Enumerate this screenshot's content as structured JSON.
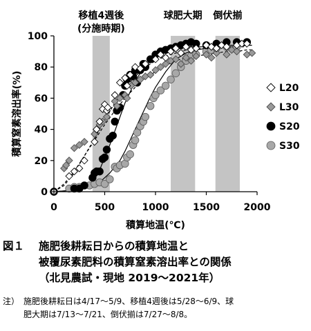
{
  "chart_data": {
    "type": "scatter",
    "xlabel": "積算地温(℃)",
    "ylabel": "積算窒素溶出率(%)",
    "xlim": [
      0,
      2000
    ],
    "ylim": [
      0,
      100
    ],
    "xticks": [
      "0",
      "500",
      "1000",
      "1500",
      "2000"
    ],
    "yticks": [
      "0",
      "20",
      "40",
      "60",
      "80",
      "100"
    ],
    "periods": [
      {
        "label_lines": [
          "移植4週後",
          "(分施時期)"
        ],
        "x_start": 380,
        "x_end": 550
      },
      {
        "label_lines": [
          "球肥大期"
        ],
        "x_start": 1150,
        "x_end": 1390
      },
      {
        "label_lines": [
          "倒伏揃"
        ],
        "x_start": 1590,
        "x_end": 1830
      }
    ],
    "legend_position": "right",
    "series": [
      {
        "name": "L20",
        "marker": "diamond-open",
        "fill": "#ffffff",
        "stroke": "#000000",
        "curve_style": "dashed",
        "curve": [
          [
            0,
            0
          ],
          [
            100,
            4
          ],
          [
            200,
            12
          ],
          [
            300,
            23
          ],
          [
            400,
            34
          ],
          [
            500,
            46
          ],
          [
            600,
            57
          ],
          [
            700,
            66
          ],
          [
            800,
            74
          ],
          [
            900,
            80
          ],
          [
            1000,
            84
          ],
          [
            1100,
            87
          ],
          [
            1200,
            89
          ],
          [
            1300,
            91
          ],
          [
            1400,
            92
          ],
          [
            1500,
            92
          ],
          [
            1600,
            92
          ],
          [
            1700,
            93
          ],
          [
            1800,
            93
          ],
          [
            1900,
            93
          ]
        ],
        "points": [
          [
            0,
            0
          ],
          [
            150,
            10
          ],
          [
            200,
            13
          ],
          [
            250,
            15
          ],
          [
            300,
            20
          ],
          [
            400,
            32
          ],
          [
            420,
            40
          ],
          [
            450,
            45
          ],
          [
            480,
            53
          ],
          [
            500,
            56
          ],
          [
            520,
            52
          ],
          [
            530,
            54
          ],
          [
            600,
            62
          ],
          [
            650,
            70
          ],
          [
            700,
            73
          ],
          [
            720,
            68
          ],
          [
            750,
            75
          ],
          [
            800,
            80
          ],
          [
            850,
            79
          ],
          [
            900,
            82
          ],
          [
            1000,
            85
          ],
          [
            1050,
            88
          ],
          [
            1100,
            86
          ],
          [
            1150,
            90
          ],
          [
            1200,
            92
          ],
          [
            1250,
            89
          ],
          [
            1300,
            93
          ],
          [
            1350,
            91
          ],
          [
            1400,
            92
          ],
          [
            1500,
            94
          ],
          [
            1550,
            93
          ],
          [
            1600,
            92
          ],
          [
            1650,
            94
          ],
          [
            1700,
            93
          ],
          [
            1800,
            94
          ],
          [
            1850,
            95
          ],
          [
            1900,
            95
          ]
        ]
      },
      {
        "name": "L30",
        "marker": "diamond-filled",
        "fill": "#9a9a9a",
        "stroke": "#4a4a4a",
        "curve_style": "dashed",
        "curve": [
          [
            0,
            0
          ],
          [
            100,
            5
          ],
          [
            200,
            13
          ],
          [
            300,
            23
          ],
          [
            400,
            33
          ],
          [
            500,
            43
          ],
          [
            600,
            52
          ],
          [
            700,
            60
          ],
          [
            800,
            67
          ],
          [
            900,
            73
          ],
          [
            1000,
            77
          ],
          [
            1100,
            81
          ],
          [
            1200,
            84
          ],
          [
            1300,
            86
          ],
          [
            1400,
            87
          ],
          [
            1500,
            88
          ],
          [
            1600,
            89
          ],
          [
            1700,
            90
          ],
          [
            1800,
            90
          ],
          [
            1900,
            91
          ],
          [
            1950,
            91
          ]
        ],
        "points": [
          [
            0,
            0
          ],
          [
            100,
            15
          ],
          [
            120,
            17
          ],
          [
            150,
            20
          ],
          [
            200,
            28
          ],
          [
            250,
            30
          ],
          [
            300,
            32
          ],
          [
            400,
            37
          ],
          [
            420,
            40
          ],
          [
            450,
            43
          ],
          [
            480,
            45
          ],
          [
            520,
            48
          ],
          [
            600,
            58
          ],
          [
            620,
            55
          ],
          [
            650,
            60
          ],
          [
            700,
            62
          ],
          [
            720,
            60
          ],
          [
            760,
            68
          ],
          [
            800,
            70
          ],
          [
            850,
            72
          ],
          [
            900,
            74
          ],
          [
            950,
            75
          ],
          [
            1000,
            78
          ],
          [
            1050,
            80
          ],
          [
            1100,
            82
          ],
          [
            1150,
            84
          ],
          [
            1200,
            85
          ],
          [
            1250,
            82
          ],
          [
            1300,
            86
          ],
          [
            1350,
            84
          ],
          [
            1400,
            87
          ],
          [
            1500,
            88
          ],
          [
            1550,
            86
          ],
          [
            1600,
            89
          ],
          [
            1700,
            88
          ],
          [
            1750,
            91
          ],
          [
            1800,
            90
          ],
          [
            1900,
            88
          ],
          [
            1950,
            89
          ]
        ]
      },
      {
        "name": "S20",
        "marker": "circle-filled",
        "fill": "#000000",
        "stroke": "#000000",
        "curve_style": "solid",
        "curve": [
          [
            0,
            0
          ],
          [
            200,
            1
          ],
          [
            300,
            2
          ],
          [
            350,
            4
          ],
          [
            400,
            8
          ],
          [
            450,
            14
          ],
          [
            500,
            22
          ],
          [
            550,
            30
          ],
          [
            600,
            39
          ],
          [
            650,
            48
          ],
          [
            700,
            57
          ],
          [
            750,
            64
          ],
          [
            800,
            71
          ],
          [
            850,
            76
          ],
          [
            900,
            80
          ],
          [
            950,
            84
          ],
          [
            1000,
            87
          ],
          [
            1050,
            89
          ],
          [
            1100,
            90
          ],
          [
            1150,
            91
          ],
          [
            1200,
            92
          ],
          [
            1300,
            93
          ],
          [
            1400,
            93
          ],
          [
            1500,
            93
          ],
          [
            1600,
            94
          ],
          [
            1700,
            94
          ],
          [
            1800,
            94
          ],
          [
            1900,
            94
          ],
          [
            1950,
            94
          ]
        ],
        "points": [
          [
            0,
            0
          ],
          [
            200,
            2
          ],
          [
            250,
            2
          ],
          [
            300,
            4
          ],
          [
            380,
            9
          ],
          [
            400,
            12
          ],
          [
            420,
            13
          ],
          [
            450,
            13
          ],
          [
            480,
            21
          ],
          [
            500,
            22
          ],
          [
            520,
            27
          ],
          [
            550,
            34
          ],
          [
            580,
            36
          ],
          [
            600,
            45
          ],
          [
            620,
            52
          ],
          [
            650,
            54
          ],
          [
            680,
            62
          ],
          [
            700,
            68
          ],
          [
            720,
            72
          ],
          [
            750,
            75
          ],
          [
            780,
            74
          ],
          [
            800,
            78
          ],
          [
            820,
            70
          ],
          [
            850,
            78
          ],
          [
            880,
            82
          ],
          [
            900,
            80
          ],
          [
            950,
            85
          ],
          [
            1000,
            88
          ],
          [
            1050,
            90
          ],
          [
            1100,
            91
          ],
          [
            1150,
            92
          ],
          [
            1200,
            93
          ],
          [
            1250,
            94
          ],
          [
            1300,
            95
          ],
          [
            1350,
            96
          ],
          [
            1400,
            95
          ],
          [
            1500,
            94
          ],
          [
            1600,
            95
          ],
          [
            1700,
            96
          ],
          [
            1800,
            96
          ],
          [
            1900,
            96
          ]
        ]
      },
      {
        "name": "S30",
        "marker": "circle-filled",
        "fill": "#a8a8a8",
        "stroke": "#5a5a5a",
        "curve_style": "solid",
        "curve": [
          [
            0,
            0
          ],
          [
            200,
            1
          ],
          [
            300,
            2
          ],
          [
            400,
            4
          ],
          [
            450,
            6
          ],
          [
            500,
            9
          ],
          [
            550,
            12
          ],
          [
            600,
            16
          ],
          [
            650,
            20
          ],
          [
            700,
            26
          ],
          [
            750,
            33
          ],
          [
            800,
            40
          ],
          [
            850,
            47
          ],
          [
            900,
            54
          ],
          [
            950,
            61
          ],
          [
            1000,
            67
          ],
          [
            1050,
            72
          ],
          [
            1100,
            77
          ],
          [
            1150,
            81
          ],
          [
            1200,
            85
          ],
          [
            1250,
            87
          ],
          [
            1300,
            89
          ],
          [
            1350,
            90
          ],
          [
            1400,
            91
          ],
          [
            1500,
            92
          ],
          [
            1600,
            93
          ],
          [
            1700,
            93
          ],
          [
            1800,
            93
          ],
          [
            1900,
            94
          ]
        ],
        "points": [
          [
            0,
            0
          ],
          [
            150,
            2
          ],
          [
            200,
            3
          ],
          [
            250,
            3
          ],
          [
            350,
            4
          ],
          [
            400,
            5
          ],
          [
            450,
            6
          ],
          [
            500,
            5
          ],
          [
            550,
            8
          ],
          [
            600,
            16
          ],
          [
            620,
            15
          ],
          [
            650,
            17
          ],
          [
            700,
            18
          ],
          [
            720,
            22
          ],
          [
            750,
            24
          ],
          [
            780,
            30
          ],
          [
            800,
            33
          ],
          [
            820,
            38
          ],
          [
            850,
            42
          ],
          [
            880,
            45
          ],
          [
            900,
            48
          ],
          [
            950,
            55
          ],
          [
            980,
            60
          ],
          [
            1000,
            62
          ],
          [
            1050,
            65
          ],
          [
            1100,
            68
          ],
          [
            1150,
            72
          ],
          [
            1200,
            76
          ],
          [
            1250,
            80
          ],
          [
            1300,
            84
          ],
          [
            1350,
            87
          ],
          [
            1400,
            88
          ],
          [
            1500,
            90
          ],
          [
            1550,
            91
          ],
          [
            1600,
            92
          ],
          [
            1700,
            93
          ],
          [
            1800,
            93
          ],
          [
            1900,
            96
          ]
        ]
      }
    ]
  },
  "caption": {
    "label": "図１",
    "line1": "施肥後耕耘日からの積算地温と",
    "line2": "被覆尿素肥料の積算窒素溶出率との関係",
    "line3": "（北見農試・現地 2019～2021年）"
  },
  "note": {
    "head": "注）",
    "line1": "施肥後耕耘日は4/17～5/9、移植4週後は5/28～6/9、球",
    "line2": "肥大期は7/13～7/21、倒伏揃は7/27～8/8。"
  }
}
